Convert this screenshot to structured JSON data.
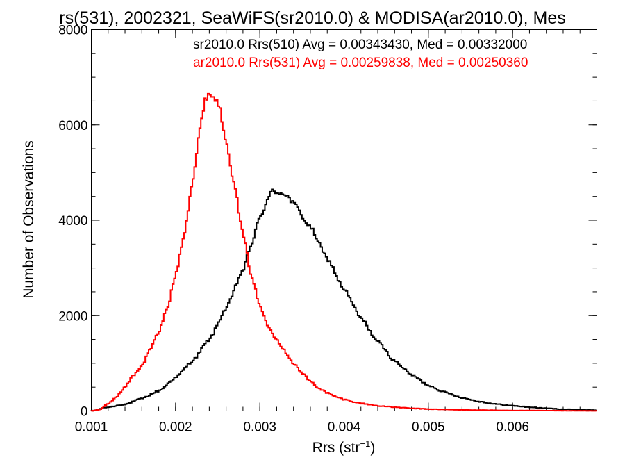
{
  "chart_data": {
    "type": "histogram",
    "title": "rs(531), 2002321, SeaWiFS(sr2010.0) & MODISA(ar2010.0), Mes",
    "xlabel": "Rrs (str",
    "xlabel_sup": "−1",
    "xlabel_close": ")",
    "ylabel": "Number of Observations",
    "xlim": [
      0.001,
      0.007
    ],
    "ylim": [
      0,
      8000
    ],
    "x_ticks": [
      {
        "value": 0.001,
        "label": "0.001"
      },
      {
        "value": 0.002,
        "label": "0.002"
      },
      {
        "value": 0.003,
        "label": "0.003"
      },
      {
        "value": 0.004,
        "label": "0.004"
      },
      {
        "value": 0.005,
        "label": "0.005"
      },
      {
        "value": 0.006,
        "label": "0.006"
      }
    ],
    "y_ticks": [
      {
        "value": 0,
        "label": "0"
      },
      {
        "value": 2000,
        "label": "2000"
      },
      {
        "value": 4000,
        "label": "4000"
      },
      {
        "value": 6000,
        "label": "6000"
      },
      {
        "value": 8000,
        "label": "8000"
      }
    ],
    "grid": false,
    "legend": "top-right",
    "annotations": [
      {
        "text": "sr2010.0 Rrs(510) Avg = 0.00343430, Med = 0.00332000",
        "color": "#000000"
      },
      {
        "text": "ar2010.0 Rrs(531) Avg = 0.00259838, Med = 0.00250360",
        "color": "#ff0000"
      }
    ],
    "series": [
      {
        "color": "#000000",
        "points": [
          [
            0.001,
            0
          ],
          [
            0.0012,
            80
          ],
          [
            0.0014,
            140
          ],
          [
            0.0016,
            260
          ],
          [
            0.0018,
            420
          ],
          [
            0.002,
            700
          ],
          [
            0.0022,
            1050
          ],
          [
            0.0024,
            1500
          ],
          [
            0.0026,
            2150
          ],
          [
            0.0028,
            2950
          ],
          [
            0.0029,
            3500
          ],
          [
            0.003,
            4050
          ],
          [
            0.0031,
            4450
          ],
          [
            0.00315,
            4620
          ],
          [
            0.0032,
            4590
          ],
          [
            0.0033,
            4560
          ],
          [
            0.0034,
            4350
          ],
          [
            0.0036,
            3850
          ],
          [
            0.0038,
            3200
          ],
          [
            0.004,
            2550
          ],
          [
            0.0042,
            1950
          ],
          [
            0.0044,
            1450
          ],
          [
            0.0046,
            1050
          ],
          [
            0.0048,
            760
          ],
          [
            0.005,
            540
          ],
          [
            0.0052,
            390
          ],
          [
            0.0054,
            280
          ],
          [
            0.0056,
            200
          ],
          [
            0.0058,
            145
          ],
          [
            0.006,
            110
          ],
          [
            0.0062,
            80
          ],
          [
            0.0064,
            55
          ],
          [
            0.0066,
            38
          ],
          [
            0.0068,
            25
          ],
          [
            0.007,
            15
          ]
        ]
      },
      {
        "color": "#ff0000",
        "points": [
          [
            0.001,
            0
          ],
          [
            0.0011,
            30
          ],
          [
            0.0012,
            150
          ],
          [
            0.0013,
            300
          ],
          [
            0.0014,
            500
          ],
          [
            0.0015,
            750
          ],
          [
            0.0016,
            950
          ],
          [
            0.0017,
            1300
          ],
          [
            0.0018,
            1650
          ],
          [
            0.0019,
            2150
          ],
          [
            0.002,
            2850
          ],
          [
            0.0021,
            3700
          ],
          [
            0.0022,
            4800
          ],
          [
            0.0023,
            6000
          ],
          [
            0.00235,
            6550
          ],
          [
            0.0024,
            6650
          ],
          [
            0.0025,
            6500
          ],
          [
            0.0026,
            5700
          ],
          [
            0.0027,
            4700
          ],
          [
            0.0028,
            3700
          ],
          [
            0.0029,
            2850
          ],
          [
            0.003,
            2200
          ],
          [
            0.0031,
            1800
          ],
          [
            0.0032,
            1500
          ],
          [
            0.0033,
            1250
          ],
          [
            0.0034,
            1000
          ],
          [
            0.0035,
            800
          ],
          [
            0.0036,
            620
          ],
          [
            0.0037,
            480
          ],
          [
            0.0038,
            380
          ],
          [
            0.0039,
            300
          ],
          [
            0.004,
            240
          ],
          [
            0.0042,
            160
          ],
          [
            0.0044,
            110
          ],
          [
            0.0046,
            80
          ],
          [
            0.0048,
            55
          ],
          [
            0.005,
            40
          ],
          [
            0.0052,
            30
          ],
          [
            0.0055,
            20
          ],
          [
            0.006,
            10
          ],
          [
            0.007,
            3
          ]
        ]
      }
    ]
  }
}
